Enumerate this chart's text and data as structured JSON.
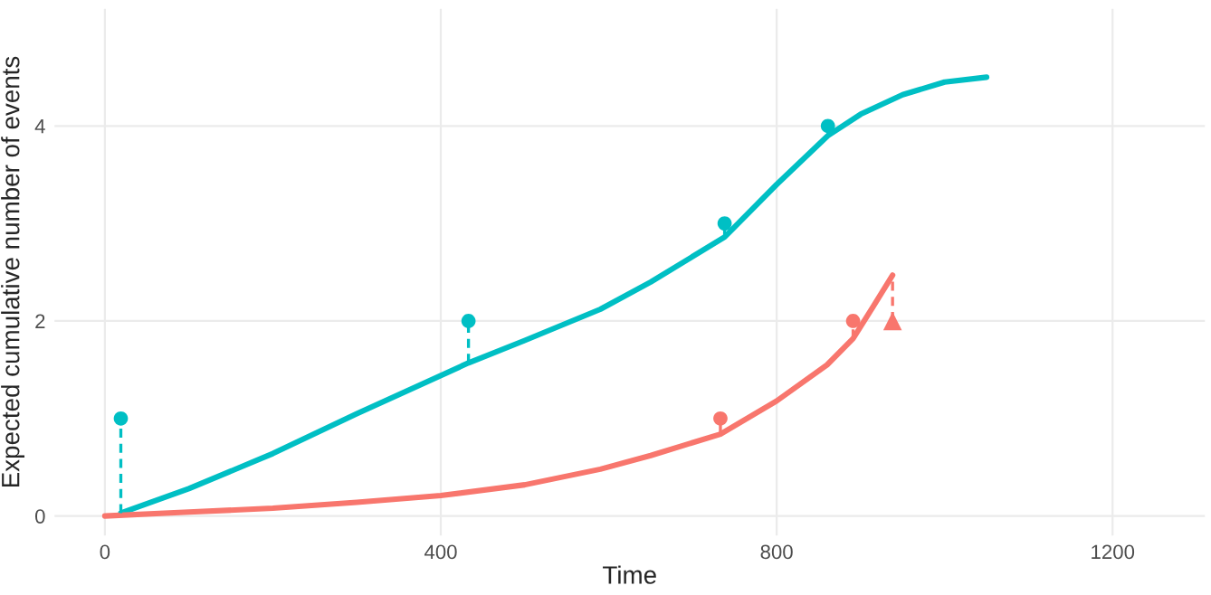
{
  "chart_data": {
    "type": "line",
    "xlabel": "Time",
    "ylabel": "Expected cumulative number of events",
    "xlim": [
      -60,
      1310
    ],
    "ylim": [
      -0.2,
      5.2
    ],
    "xticks": [
      0,
      400,
      800,
      1200
    ],
    "yticks": [
      0,
      2,
      4
    ],
    "grid": true,
    "legend": false,
    "marker": "none",
    "line_style": "solid",
    "series": [
      {
        "color": "#00bfc4",
        "x": [
          19,
          100,
          200,
          300,
          433,
          500,
          590,
          650,
          738,
          800,
          861,
          900,
          950,
          1000,
          1050
        ],
        "values": [
          0.03,
          0.28,
          0.64,
          1.05,
          1.57,
          1.8,
          2.12,
          2.4,
          2.86,
          3.4,
          3.9,
          4.12,
          4.32,
          4.45,
          4.5
        ]
      },
      {
        "color": "#f8766d",
        "x": [
          0,
          100,
          200,
          300,
          400,
          500,
          590,
          650,
          733,
          800,
          860,
          891,
          915,
          938
        ],
        "values": [
          0,
          0.04,
          0.08,
          0.14,
          0.21,
          0.32,
          0.48,
          0.62,
          0.84,
          1.18,
          1.55,
          1.82,
          2.15,
          2.47
        ]
      },
      {
        "type": "scatter",
        "color": "#00bfc4",
        "marker": "circle",
        "line_style": "dashed",
        "x": [
          19,
          433,
          738,
          861
        ],
        "values": [
          1,
          2,
          3,
          4
        ],
        "errors": [
          [
            0.03,
            1
          ],
          [
            1.57,
            2
          ],
          [
            2.86,
            3
          ],
          [
            3.9,
            4
          ]
        ]
      },
      {
        "type": "scatter",
        "color": "#f8766d",
        "marker": "circle",
        "line_style": "dashed",
        "x": [
          733,
          891
        ],
        "values": [
          1,
          2
        ],
        "errors": [
          [
            0.84,
            1
          ],
          [
            1.82,
            2
          ]
        ]
      },
      {
        "type": "scatter",
        "color": "#f8766d",
        "marker": "triangle",
        "line_style": "dashed",
        "x": [
          938
        ],
        "values": [
          2
        ],
        "errors": [
          [
            2,
            2.47
          ]
        ]
      }
    ]
  }
}
